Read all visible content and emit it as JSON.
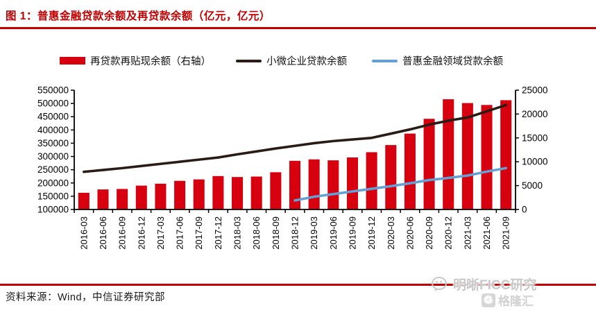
{
  "figure": {
    "title": "图 1：普惠金融贷款余额及再贷款余额（亿元，亿元）",
    "source": "资料来源：Wind，中信证券研究部",
    "watermark": {
      "wechat_text": "明晰FICC研究",
      "gelonghui_text": "格隆汇",
      "gelonghui_logo_letter": "G"
    }
  },
  "colors": {
    "title_red": "#c00000",
    "rule_red": "#c00000",
    "bar_red": "#d7000f",
    "dark_line": "#2b1b15",
    "blue_line": "#63a0d6",
    "axis_black": "#000000"
  },
  "chart_data": {
    "type": "bar+line combo, dual axis",
    "grid": false,
    "legend_position": "top",
    "categories": [
      "2016-03",
      "2016-06",
      "2016-09",
      "2016-12",
      "2017-03",
      "2017-06",
      "2017-09",
      "2017-12",
      "2018-03",
      "2018-06",
      "2018-09",
      "2018-12",
      "2019-03",
      "2019-06",
      "2019-09",
      "2019-12",
      "2020-03",
      "2020-06",
      "2020-09",
      "2020-12",
      "2021-03",
      "2021-06",
      "2021-09"
    ],
    "left_axis": {
      "min": 100000,
      "max": 550000,
      "step": 50000
    },
    "right_axis": {
      "min": 0,
      "max": 25000,
      "step": 5000
    },
    "series": [
      {
        "name": "再贷款再贴现余额（右轴）",
        "type": "bar",
        "axis": "right",
        "color": "#d7000f",
        "values": [
          3500,
          4200,
          4300,
          5000,
          5400,
          6000,
          6300,
          7000,
          6800,
          6900,
          7800,
          10200,
          10500,
          10300,
          10900,
          12000,
          13500,
          15900,
          19000,
          23100,
          22300,
          21900,
          22900
        ]
      },
      {
        "name": "小微企业贷款余额",
        "type": "line",
        "axis": "left",
        "color": "#2b1b15",
        "values": [
          242000,
          249000,
          256000,
          264000,
          272000,
          280000,
          288000,
          296000,
          308000,
          319000,
          330000,
          340000,
          350000,
          358000,
          364000,
          370000,
          386000,
          402000,
          420000,
          435000,
          447000,
          470000,
          494000
        ]
      },
      {
        "name": "普惠金融领域贷款余额",
        "type": "line",
        "axis": "left",
        "color": "#63a0d6",
        "values": [
          null,
          null,
          null,
          null,
          null,
          null,
          null,
          null,
          null,
          null,
          null,
          134000,
          148000,
          158000,
          168000,
          178000,
          188000,
          199000,
          211000,
          219000,
          228000,
          243000,
          256000
        ]
      }
    ]
  }
}
